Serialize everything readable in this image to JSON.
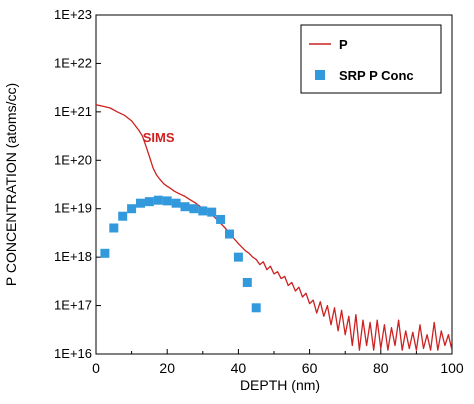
{
  "chart_data": {
    "type": "scatter",
    "xlabel": "DEPTH (nm)",
    "ylabel": "P CONCENTRATION (atoms/cc)",
    "xlim": [
      0,
      100
    ],
    "ylim": [
      1e+16,
      1e+23
    ],
    "y_scale": "log",
    "x_ticks": [
      0,
      20,
      40,
      60,
      80,
      100
    ],
    "x_tick_labels": [
      "0",
      "20",
      "40",
      "60",
      "80",
      "100"
    ],
    "y_ticks": [
      1e+16,
      1e+17,
      1e+18,
      1e+19,
      1e+20,
      1e+21,
      1e+22,
      1e+23
    ],
    "y_tick_labels": [
      "1E+16",
      "1E+17",
      "1E+18",
      "1E+19",
      "1E+20",
      "1E+21",
      "1E+22",
      "1E+23"
    ],
    "grid": false,
    "legend_position": "top-right",
    "annotations": [
      {
        "text": "SIMS",
        "x": 12,
        "y": 3e+20,
        "color": "#cc2222"
      }
    ],
    "series": [
      {
        "name": "P",
        "kind": "line",
        "color": "#cc2222",
        "points": [
          [
            0,
            1.4e+21
          ],
          [
            2,
            1.3e+21
          ],
          [
            4,
            1.2e+21
          ],
          [
            6,
            1e+21
          ],
          [
            8,
            8.5e+20
          ],
          [
            10,
            6.5e+20
          ],
          [
            12,
            4.2e+20
          ],
          [
            13,
            3.2e+20
          ],
          [
            14,
            2e+20
          ],
          [
            15,
            1.2e+20
          ],
          [
            16,
            7e+19
          ],
          [
            17,
            5e+19
          ],
          [
            18,
            4e+19
          ],
          [
            19,
            3.3e+19
          ],
          [
            20,
            2.9e+19
          ],
          [
            21,
            2.6e+19
          ],
          [
            22,
            2.3e+19
          ],
          [
            23,
            2.1e+19
          ],
          [
            24,
            1.95e+19
          ],
          [
            25,
            1.8e+19
          ],
          [
            26,
            1.6e+19
          ],
          [
            27,
            1.45e+19
          ],
          [
            28,
            1.3e+19
          ],
          [
            29,
            1.15e+19
          ],
          [
            30,
            1e+19
          ],
          [
            31,
            9e+18
          ],
          [
            32,
            8e+18
          ],
          [
            33,
            7e+18
          ],
          [
            34,
            6e+18
          ],
          [
            35,
            5e+18
          ],
          [
            36,
            4.2e+18
          ],
          [
            37,
            3.5e+18
          ],
          [
            38,
            2.8e+18
          ],
          [
            39,
            2.3e+18
          ],
          [
            40,
            1.9e+18
          ],
          [
            41,
            1.6e+18
          ],
          [
            42,
            1.35e+18
          ],
          [
            43,
            1.2e+18
          ],
          [
            44,
            1e+18
          ],
          [
            45,
            9e+17
          ],
          [
            46,
            7e+17
          ],
          [
            47,
            8e+17
          ],
          [
            48,
            5.5e+17
          ],
          [
            49,
            6.5e+17
          ],
          [
            50,
            4.5e+17
          ],
          [
            51,
            5e+17
          ],
          [
            52,
            3.6e+17
          ],
          [
            53,
            4e+17
          ],
          [
            54,
            2.6e+17
          ],
          [
            55,
            3e+17
          ],
          [
            56,
            2e+17
          ],
          [
            57,
            2.4e+17
          ],
          [
            58,
            1.5e+17
          ],
          [
            59,
            1.8e+17
          ],
          [
            60,
            1.1e+17
          ],
          [
            61,
            1.3e+17
          ],
          [
            62,
            7e+16
          ],
          [
            63,
            1.2e+17
          ],
          [
            64,
            6e+16
          ],
          [
            65,
            1e+17
          ],
          [
            66,
            4e+16
          ],
          [
            67,
            9e+16
          ],
          [
            68,
            3e+16
          ],
          [
            69,
            8e+16
          ],
          [
            70,
            2.5e+16
          ],
          [
            71,
            6e+16
          ],
          [
            72,
            1.5e+16
          ],
          [
            73,
            6.5e+16
          ],
          [
            74,
            1.2e+16
          ],
          [
            75,
            5e+16
          ],
          [
            76,
            1.5e+16
          ],
          [
            77,
            4.5e+16
          ],
          [
            78,
            1.2e+16
          ],
          [
            79,
            5e+16
          ],
          [
            80,
            1.3e+16
          ],
          [
            81,
            4e+16
          ],
          [
            82,
            1.2e+16
          ],
          [
            83,
            3.5e+16
          ],
          [
            84,
            1.5e+16
          ],
          [
            85,
            5e+16
          ],
          [
            86,
            1.2e+16
          ],
          [
            87,
            3e+16
          ],
          [
            88,
            1.3e+16
          ],
          [
            89,
            2.8e+16
          ],
          [
            90,
            1.2e+16
          ],
          [
            91,
            4e+16
          ],
          [
            92,
            1.3e+16
          ],
          [
            93,
            2.5e+16
          ],
          [
            94,
            1.2e+16
          ],
          [
            95,
            4.5e+16
          ],
          [
            96,
            1.2e+16
          ],
          [
            97,
            3e+16
          ],
          [
            98,
            1.5e+16
          ],
          [
            99,
            2.5e+16
          ],
          [
            100,
            1.2e+16
          ]
        ]
      },
      {
        "name": "SRP P Conc",
        "kind": "markers",
        "color": "#3399dd",
        "points": [
          [
            2.5,
            1.2e+18
          ],
          [
            5,
            4e+18
          ],
          [
            7.5,
            7e+18
          ],
          [
            10,
            1e+19
          ],
          [
            12.5,
            1.3e+19
          ],
          [
            15,
            1.4e+19
          ],
          [
            17.5,
            1.5e+19
          ],
          [
            20,
            1.45e+19
          ],
          [
            22.5,
            1.3e+19
          ],
          [
            25,
            1.1e+19
          ],
          [
            27.5,
            1e+19
          ],
          [
            30,
            9e+18
          ],
          [
            32.5,
            8.5e+18
          ],
          [
            35,
            6e+18
          ],
          [
            37.5,
            3e+18
          ],
          [
            40,
            1e+18
          ],
          [
            42.5,
            3e+17
          ],
          [
            45,
            9e+16
          ]
        ]
      }
    ]
  }
}
